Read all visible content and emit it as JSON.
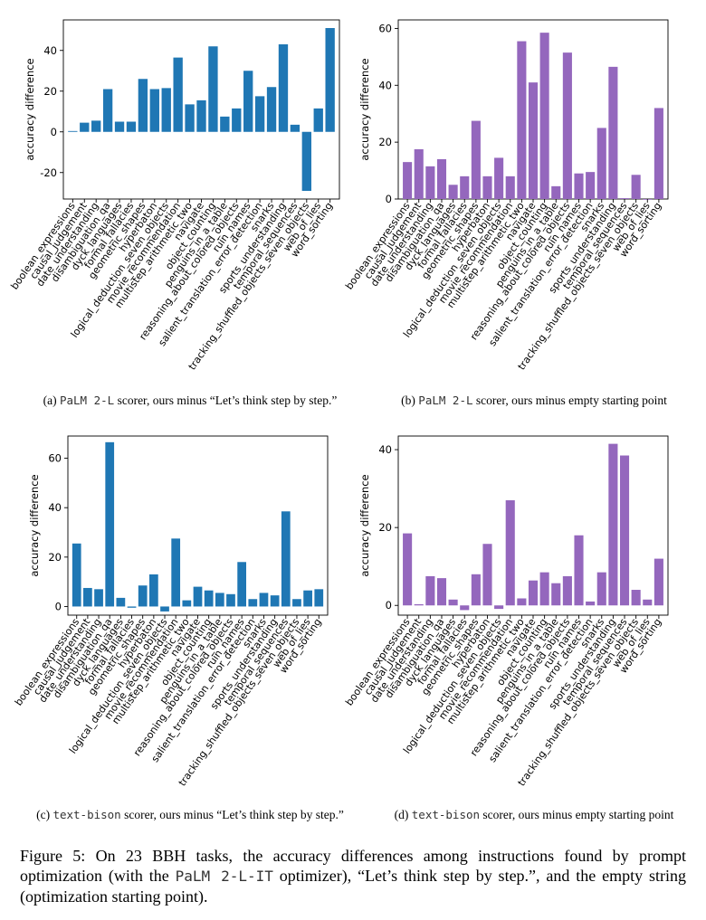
{
  "chart_data": [
    {
      "type": "bar",
      "panel": "a",
      "color": "#1f77b4",
      "ylabel": "accuracy difference",
      "ylim": [
        -33,
        55
      ],
      "yticks": [
        -20,
        0,
        20,
        40
      ],
      "categories": [
        "boolean_expressions",
        "causal_judgement",
        "date_understanding",
        "disambiguation_qa",
        "dyck_languages",
        "formal_fallacies",
        "geometric_shapes",
        "hyperbaton",
        "logical_deduction_seven_objects",
        "movie_recommendation",
        "multistep_arithmetic_two",
        "navigate",
        "object_counting",
        "penguins_in_a_table",
        "reasoning_about_colored_objects",
        "ruin_names",
        "salient_translation_error_detection",
        "snarks",
        "sports_understanding",
        "temporal_sequences",
        "tracking_shuffled_objects_seven_objects",
        "web_of_lies",
        "word_sorting"
      ],
      "values": [
        0.4,
        4.5,
        5.5,
        21,
        5,
        5,
        26,
        21,
        21.5,
        36.5,
        13.5,
        15.5,
        42,
        7.5,
        11.5,
        30,
        17.5,
        22,
        43,
        3.5,
        -29,
        11.5,
        51
      ]
    },
    {
      "type": "bar",
      "panel": "b",
      "color": "#9467bd",
      "ylabel": "accuracy difference",
      "ylim": [
        0,
        63
      ],
      "yticks": [
        0,
        20,
        40,
        60
      ],
      "categories": [
        "boolean_expressions",
        "causal_judgement",
        "date_understanding",
        "disambiguation_qa",
        "dyck_languages",
        "formal_fallacies",
        "geometric_shapes",
        "hyperbaton",
        "logical_deduction_seven_objects",
        "movie_recommendation",
        "multistep_arithmetic_two",
        "navigate",
        "object_counting",
        "penguins_in_a_table",
        "reasoning_about_colored_objects",
        "ruin_names",
        "salient_translation_error_detection",
        "snarks",
        "sports_understanding",
        "temporal_sequences",
        "tracking_shuffled_objects_seven_objects",
        "web_of_lies",
        "word_sorting"
      ],
      "values": [
        13,
        17.5,
        11.5,
        14,
        5,
        8,
        27.5,
        8,
        14.5,
        8,
        55.5,
        41,
        58.5,
        4.5,
        51.5,
        9,
        9.5,
        25,
        46.5,
        0.3,
        8.5,
        0,
        32
      ]
    },
    {
      "type": "bar",
      "panel": "c",
      "color": "#1f77b4",
      "ylabel": "accuracy difference",
      "ylim": [
        -3.5,
        69
      ],
      "yticks": [
        0,
        20,
        40,
        60
      ],
      "categories": [
        "boolean_expressions",
        "causal_judgement",
        "date_understanding",
        "disambiguation_qa",
        "dyck_languages",
        "formal_fallacies",
        "geometric_shapes",
        "hyperbaton",
        "logical_deduction_seven_objects",
        "movie_recommendation",
        "multistep_arithmetic_two",
        "navigate",
        "object_counting",
        "penguins_in_a_table",
        "reasoning_about_colored_objects",
        "ruin_names",
        "salient_translation_error_detection",
        "snarks",
        "sports_understanding",
        "temporal_sequences",
        "tracking_shuffled_objects_seven_objects",
        "web_of_lies",
        "word_sorting"
      ],
      "values": [
        25.5,
        7.5,
        7,
        66.5,
        3.5,
        -0.5,
        8.5,
        13,
        -2,
        27.5,
        2.5,
        8,
        6.5,
        5.5,
        5,
        18,
        3,
        5.5,
        4.5,
        38.5,
        3,
        6.5,
        7
      ]
    },
    {
      "type": "bar",
      "panel": "d",
      "color": "#9467bd",
      "ylabel": "accuracy difference",
      "ylim": [
        -2.5,
        43.5
      ],
      "yticks": [
        0,
        20,
        40
      ],
      "categories": [
        "boolean_expressions",
        "causal_judgement",
        "date_understanding",
        "disambiguation_qa",
        "dyck_languages",
        "formal_fallacies",
        "geometric_shapes",
        "hyperbaton",
        "logical_deduction_seven_objects",
        "movie_recommendation",
        "multistep_arithmetic_two",
        "navigate",
        "object_counting",
        "penguins_in_a_table",
        "reasoning_about_colored_objects",
        "ruin_names",
        "salient_translation_error_detection",
        "snarks",
        "sports_understanding",
        "temporal_sequences",
        "tracking_shuffled_objects_seven_objects",
        "web_of_lies",
        "word_sorting"
      ],
      "values": [
        18.5,
        0.3,
        7.5,
        7,
        1.5,
        -1.2,
        8,
        15.8,
        -0.9,
        27,
        1.8,
        6.4,
        8.5,
        5.7,
        7.5,
        18,
        1,
        8.5,
        41.5,
        38.5,
        4,
        1.5,
        12
      ]
    }
  ],
  "captions": {
    "a": {
      "prefix": "(a)",
      "mono": "PaLM 2-L",
      "rest": " scorer, ours minus “Let’s think step by step.”"
    },
    "b": {
      "prefix": "(b)",
      "mono": "PaLM 2-L",
      "rest": " scorer, ours minus empty starting point"
    },
    "c": {
      "prefix": "(c)",
      "mono": "text-bison",
      "rest": " scorer, ours minus “Let’s think step by step.”"
    },
    "d": {
      "prefix": "(d)",
      "mono": "text-bison",
      "rest": " scorer, ours minus empty starting point"
    }
  },
  "figure_caption": {
    "lead": "Figure 5: On 23 BBH tasks, the accuracy differences among instructions found by prompt optimization (with the ",
    "mono": "PaLM 2-L-IT",
    "tail": " optimizer), “Let’s think step by step.”, and the empty string (optimization starting point)."
  }
}
